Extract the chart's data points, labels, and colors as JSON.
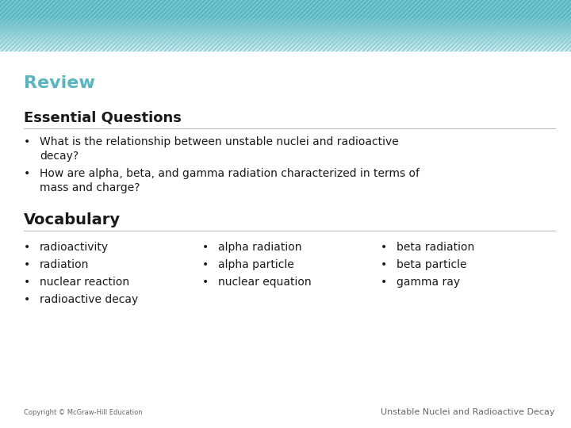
{
  "title": "Review",
  "title_color": "#5ab5c0",
  "section1_heading": "Essential Questions",
  "section1_bullet1_line1": "What is the relationship between unstable nuclei and radioactive",
  "section1_bullet1_line2": "decay?",
  "section1_bullet2_line1": "How are alpha, beta, and gamma radiation characterized in terms of",
  "section1_bullet2_line2": "mass and charge?",
  "section2_heading": "Vocabulary",
  "vocab_col1": [
    "radioactivity",
    "radiation",
    "nuclear reaction",
    "radioactive decay"
  ],
  "vocab_col2": [
    "alpha radiation",
    "alpha particle",
    "nuclear equation"
  ],
  "vocab_col3": [
    "beta radiation",
    "beta particle",
    "gamma ray"
  ],
  "footer_left": "Copyright © McGraw-Hill Education",
  "footer_right": "Unstable Nuclei and Radioactive Decay",
  "bg_color": "#ffffff",
  "header_teal": "#5ab5c0",
  "header_teal_light": "#80cdd5",
  "text_color": "#1a1a1a",
  "footer_color": "#666666",
  "bullet_char": "•"
}
